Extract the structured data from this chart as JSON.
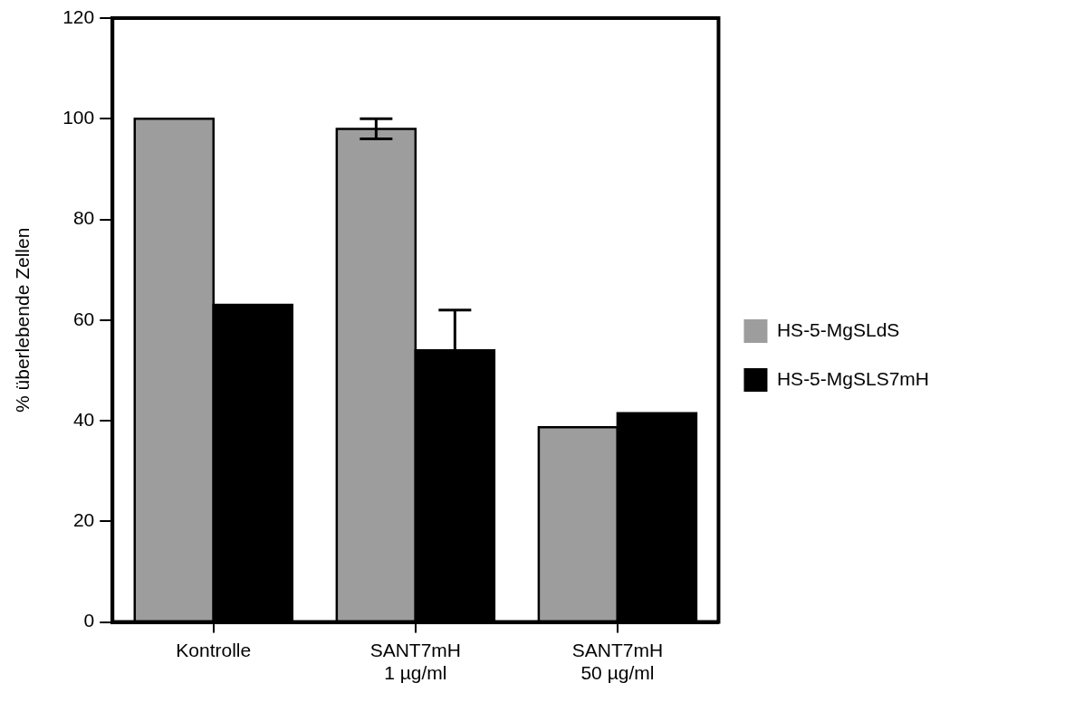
{
  "chart_data": {
    "type": "bar",
    "ylabel": "% überlebende Zellen",
    "categories": [
      "Kontrolle",
      "SANT7mH\n1 µg/ml",
      "SANT7mH\n50 µg/ml"
    ],
    "series": [
      {
        "name": "HS-5-MgSLdS",
        "color": "#9c9d9c",
        "values": [
          100,
          98,
          38.7
        ],
        "errors": [
          null,
          2,
          null
        ]
      },
      {
        "name": "HS-5-MgSLS7mH",
        "color": "#000000",
        "values": [
          63,
          54,
          41.5
        ],
        "errors": [
          null,
          8,
          null
        ]
      }
    ],
    "ylim": [
      0,
      120
    ],
    "yticks": [
      0,
      20,
      40,
      60,
      80,
      100,
      120
    ],
    "grid": false,
    "legend": "right"
  }
}
